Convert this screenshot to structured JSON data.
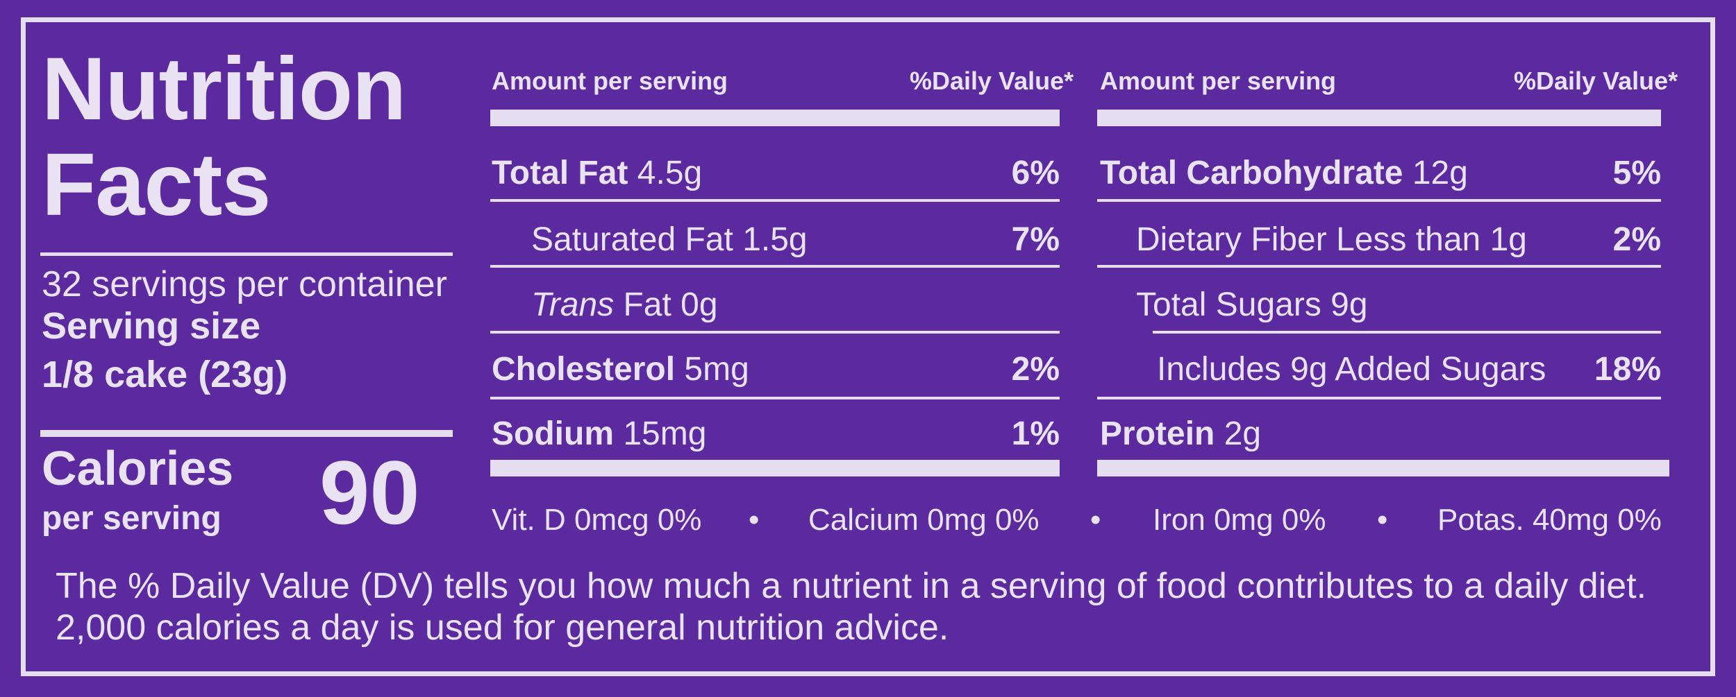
{
  "label": {
    "title_line1": "Nutrition",
    "title_line2": "Facts",
    "servings_per_container": "32 servings per container",
    "serving_size_label": "Serving size",
    "serving_size_value": "1/8 cake (23g)",
    "calories_label": "Calories",
    "calories_sub": "per serving",
    "calories_value": "90"
  },
  "left_column": {
    "amount_header": "Amount per serving",
    "dv_header": "%Daily Value*",
    "rows": [
      {
        "name": "Total Fat",
        "amount": "4.5g",
        "dv": "6%"
      },
      {
        "name": "Saturated Fat",
        "amount": "1.5g",
        "dv": "7%"
      },
      {
        "name": "Trans",
        "amount": "Fat 0g",
        "dv": ""
      },
      {
        "name": "Cholesterol",
        "amount": "5mg",
        "dv": "2%"
      },
      {
        "name": "Sodium",
        "amount": "15mg",
        "dv": "1%"
      }
    ]
  },
  "right_column": {
    "amount_header": "Amount per serving",
    "dv_header": "%Daily Value*",
    "rows": [
      {
        "name": "Total Carbohydrate",
        "amount": "12g",
        "dv": "5%"
      },
      {
        "name": "Dietary Fiber Less than",
        "amount": "1g",
        "dv": "2%"
      },
      {
        "name": "Total Sugars",
        "amount": "9g",
        "dv": ""
      },
      {
        "name": "Includes 9g Added Sugars",
        "amount": "",
        "dv": "18%"
      },
      {
        "name": "Protein",
        "amount": "2g",
        "dv": ""
      }
    ]
  },
  "vitamins": [
    "Vit. D 0mcg 0%",
    "Calcium 0mg 0%",
    "Iron 0mg 0%",
    "Potas. 40mg 0%"
  ],
  "separator": "•",
  "footnote": "The % Daily Value (DV) tells you how much a nutrient in a serving of food contributes to a daily diet. 2,000 calories a day is used for general nutrition advice.",
  "colors": {
    "background": "#5a2a9e",
    "ink": "#e8e2f2"
  }
}
